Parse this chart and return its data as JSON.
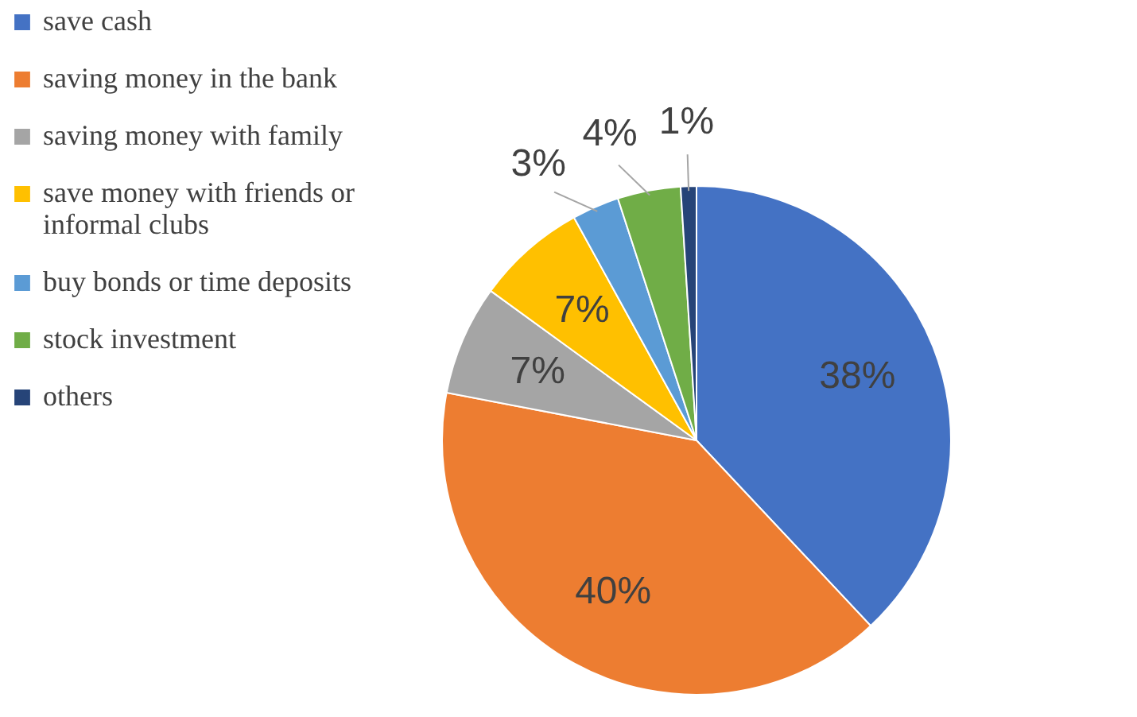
{
  "chart_data": {
    "type": "pie",
    "categories": [
      "save cash",
      "saving money in the bank",
      "saving money with family",
      "save money with friends or informal clubs",
      "buy bonds or time deposits",
      "stock investment",
      "others"
    ],
    "values": [
      38,
      40,
      7,
      7,
      3,
      4,
      1
    ],
    "colors": [
      "#4472c4",
      "#ed7d31",
      "#a5a5a5",
      "#ffc000",
      "#5b9bd5",
      "#70ad47",
      "#264478"
    ],
    "value_labels": [
      "38%",
      "40%",
      "7%",
      "7%",
      "3%",
      "4%",
      "1%"
    ],
    "legend": "left"
  }
}
